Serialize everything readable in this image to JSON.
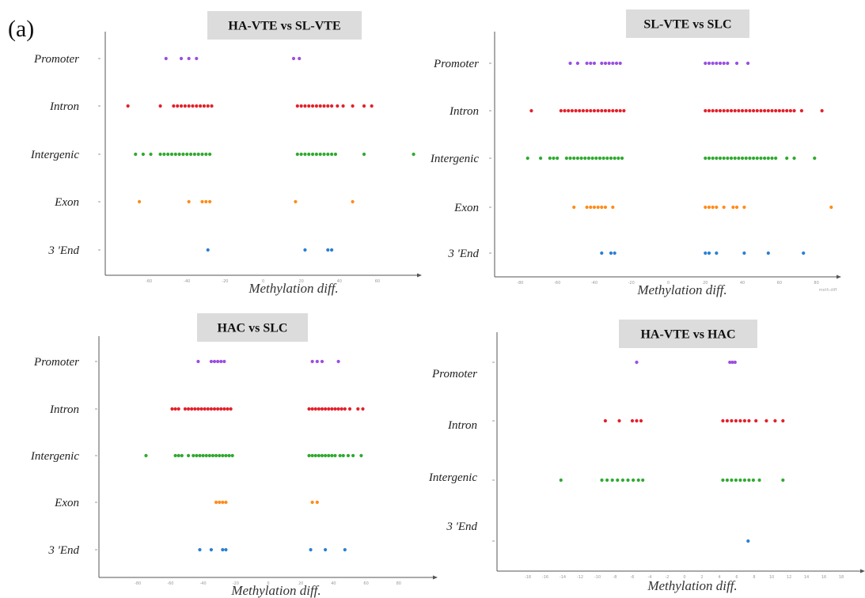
{
  "panel_label": "(a)",
  "colors": {
    "Promoter": "#9b4fe0",
    "Intron": "#e4202a",
    "Intergenic": "#2faa2f",
    "Exon": "#ff8c1a",
    "3 'End": "#2a7fd4"
  },
  "chart_data": [
    {
      "type": "scatter",
      "title": "HA-VTE vs SL-VTE",
      "xlabel": "Methylation diff.",
      "xlim": [
        -80,
        80
      ],
      "xticks": [
        -60,
        -40,
        -20,
        0,
        20,
        40,
        60
      ],
      "categories": [
        "Promoter",
        "Intron",
        "Intergenic",
        "Exon",
        "3 'End"
      ],
      "series": [
        {
          "category": "Promoter",
          "x": [
            -51,
            -43,
            -39,
            -35,
            16,
            19
          ]
        },
        {
          "category": "Intron",
          "x": [
            -71,
            -54,
            -47,
            -45,
            -43,
            -41,
            -39,
            -37,
            -35,
            -33,
            -31,
            -29,
            -27,
            18,
            20,
            22,
            24,
            26,
            28,
            30,
            32,
            34,
            36,
            39,
            42,
            47,
            53,
            57
          ]
        },
        {
          "category": "Intergenic",
          "x": [
            -67,
            -63,
            -59,
            -54,
            -52,
            -50,
            -48,
            -46,
            -44,
            -42,
            -40,
            -38,
            -36,
            -34,
            -32,
            -30,
            -28,
            18,
            20,
            22,
            24,
            26,
            28,
            30,
            32,
            34,
            36,
            38,
            53,
            79
          ]
        },
        {
          "category": "Exon",
          "x": [
            -65,
            -39,
            -32,
            -30,
            -28,
            17,
            47
          ]
        },
        {
          "category": "3 'End",
          "x": [
            -29,
            22,
            34,
            36
          ]
        }
      ]
    },
    {
      "type": "scatter",
      "title": "SL-VTE vs SLC",
      "xlabel": "Methylation diff.",
      "corner_label": "meth.diff",
      "xlim": [
        -90,
        90
      ],
      "xticks": [
        -80,
        -60,
        -40,
        -20,
        0,
        20,
        40,
        60,
        80
      ],
      "categories": [
        "Promoter",
        "Intron",
        "Intergenic",
        "Exon",
        "3 'End"
      ],
      "series": [
        {
          "category": "Promoter",
          "x": [
            -53,
            -49,
            -44,
            -42,
            -40,
            -36,
            -34,
            -32,
            -30,
            -28,
            -26,
            20,
            22,
            24,
            26,
            28,
            30,
            32,
            37,
            43
          ]
        },
        {
          "category": "Intron",
          "x": [
            -74,
            -58,
            -56,
            -54,
            -52,
            -50,
            -48,
            -46,
            -44,
            -42,
            -40,
            -38,
            -36,
            -34,
            -32,
            -30,
            -28,
            -26,
            -24,
            20,
            22,
            24,
            26,
            28,
            30,
            32,
            34,
            36,
            38,
            40,
            42,
            44,
            46,
            48,
            50,
            52,
            54,
            56,
            58,
            60,
            62,
            64,
            66,
            68,
            72,
            83
          ]
        },
        {
          "category": "Intergenic",
          "x": [
            -76,
            -69,
            -64,
            -62,
            -60,
            -55,
            -53,
            -51,
            -49,
            -47,
            -45,
            -43,
            -41,
            -39,
            -37,
            -35,
            -33,
            -31,
            -29,
            -27,
            -25,
            20,
            22,
            24,
            26,
            28,
            30,
            32,
            34,
            36,
            38,
            40,
            42,
            44,
            46,
            48,
            50,
            52,
            54,
            56,
            58,
            64,
            68,
            79
          ]
        },
        {
          "category": "Exon",
          "x": [
            -51,
            -44,
            -42,
            -40,
            -38,
            -36,
            -34,
            -30,
            20,
            22,
            24,
            26,
            30,
            35,
            37,
            41,
            88
          ]
        },
        {
          "category": "3 'End",
          "x": [
            -36,
            -31,
            -29,
            20,
            22,
            26,
            41,
            54,
            73
          ]
        }
      ]
    },
    {
      "type": "scatter",
      "title": "HAC vs SLC",
      "xlabel": "Methylation diff.",
      "xlim": [
        -100,
        100
      ],
      "xticks": [
        -80,
        -60,
        -40,
        -20,
        0,
        20,
        40,
        60,
        80
      ],
      "categories": [
        "Promoter",
        "Intron",
        "Intergenic",
        "Exon",
        "3 'End"
      ],
      "series": [
        {
          "category": "Promoter",
          "x": [
            -43,
            -35,
            -33,
            -31,
            -29,
            -27,
            27,
            30,
            33,
            43
          ]
        },
        {
          "category": "Intron",
          "x": [
            -59,
            -57,
            -55,
            -51,
            -49,
            -47,
            -45,
            -43,
            -41,
            -39,
            -37,
            -35,
            -33,
            -31,
            -29,
            -27,
            -25,
            -23,
            25,
            27,
            29,
            31,
            33,
            35,
            37,
            39,
            41,
            43,
            45,
            47,
            50,
            55,
            58
          ]
        },
        {
          "category": "Intergenic",
          "x": [
            -75,
            -57,
            -55,
            -53,
            -49,
            -46,
            -44,
            -42,
            -40,
            -38,
            -36,
            -34,
            -32,
            -30,
            -28,
            -26,
            -24,
            -22,
            25,
            27,
            29,
            31,
            33,
            35,
            37,
            39,
            41,
            44,
            46,
            49,
            52,
            57
          ]
        },
        {
          "category": "Exon",
          "x": [
            -32,
            -30,
            -28,
            -26,
            27,
            30
          ]
        },
        {
          "category": "3 'End",
          "x": [
            -42,
            -35,
            -28,
            -26,
            26,
            35,
            47
          ]
        }
      ]
    },
    {
      "type": "scatter",
      "title": "HA-VTE vs HAC",
      "xlabel": "Methylation diff.",
      "xlim": [
        -20,
        20
      ],
      "xticks": [
        -18,
        -16,
        -14,
        -12,
        -10,
        -8,
        -6,
        -4,
        -2,
        0,
        2,
        4,
        6,
        8,
        10,
        12,
        14,
        16,
        18
      ],
      "categories": [
        "Promoter",
        "Intron",
        "Intergenic",
        "3 'End"
      ],
      "series": [
        {
          "category": "Promoter",
          "x": [
            -5.5,
            5.2,
            5.5,
            5.8
          ]
        },
        {
          "category": "Intron",
          "x": [
            -9.1,
            -7.5,
            -6.0,
            -5.5,
            -5.0,
            4.4,
            4.9,
            5.4,
            5.9,
            6.4,
            6.9,
            7.4,
            8.2,
            9.4,
            10.4,
            11.3
          ]
        },
        {
          "category": "Intergenic",
          "x": [
            -14.2,
            -9.5,
            -8.9,
            -8.3,
            -7.7,
            -7.1,
            -6.5,
            -5.9,
            -5.3,
            -4.8,
            4.4,
            4.9,
            5.4,
            5.9,
            6.4,
            6.9,
            7.4,
            7.9,
            8.6,
            11.3
          ]
        },
        {
          "category": "3 'End",
          "x": [
            7.3
          ]
        }
      ]
    }
  ]
}
